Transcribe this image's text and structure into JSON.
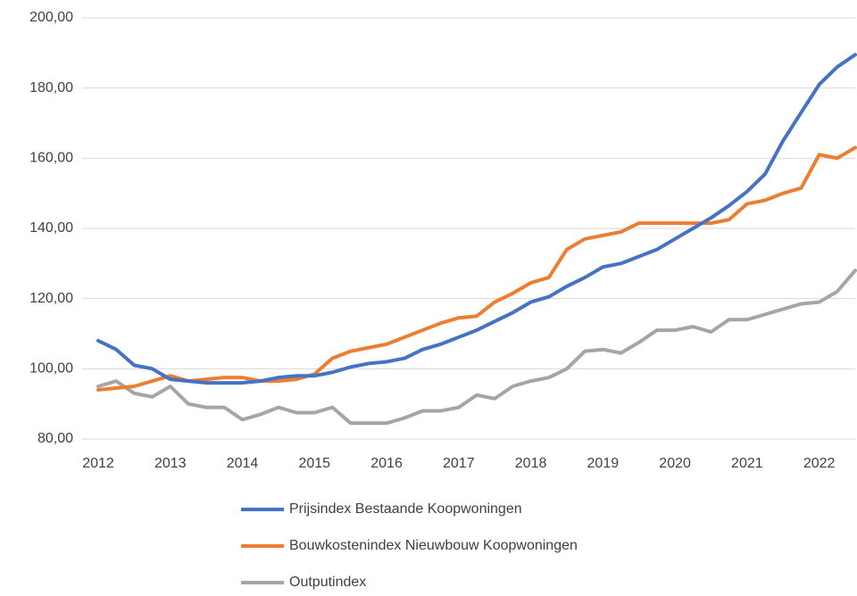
{
  "chart_data": {
    "type": "line",
    "x": [
      2012,
      2012.25,
      2012.5,
      2012.75,
      2013,
      2013.25,
      2013.5,
      2013.75,
      2014,
      2014.25,
      2014.5,
      2014.75,
      2015,
      2015.25,
      2015.5,
      2015.75,
      2016,
      2016.25,
      2016.5,
      2016.75,
      2017,
      2017.25,
      2017.5,
      2017.75,
      2018,
      2018.25,
      2018.5,
      2018.75,
      2019,
      2019.25,
      2019.5,
      2019.75,
      2020,
      2020.25,
      2020.5,
      2020.75,
      2021,
      2021.25,
      2021.5,
      2021.75,
      2022,
      2022.25,
      2022.5
    ],
    "series": [
      {
        "name": "Prijsindex Bestaande Koopwoningen",
        "color": "#4472c4",
        "values": [
          108,
          105.5,
          101,
          100,
          97,
          96.5,
          96,
          96,
          96,
          96.5,
          97.5,
          98,
          98,
          99,
          100.5,
          101.5,
          102,
          103,
          105.5,
          107,
          109,
          111,
          113.5,
          116,
          119,
          120.5,
          123.5,
          126,
          129,
          130,
          132,
          134,
          137,
          140,
          143,
          146.5,
          150.5,
          155.5,
          165,
          173,
          181,
          186,
          189.5
        ]
      },
      {
        "name": "Bouwkostenindex Nieuwbouw Koopwoningen",
        "color": "#ed7d31",
        "values": [
          94,
          94.5,
          95,
          96.5,
          98,
          96.5,
          97,
          97.5,
          97.5,
          96.5,
          96.5,
          97,
          98.5,
          103,
          105,
          106,
          107,
          109,
          111,
          113,
          114.5,
          115,
          119,
          121.5,
          124.5,
          126,
          134,
          137,
          138,
          139,
          141.5,
          141.5,
          141.5,
          141.5,
          141.5,
          142.5,
          147,
          148,
          150,
          151.5,
          161,
          160,
          163
        ]
      },
      {
        "name": "Outputindex",
        "color": "#a5a5a5",
        "values": [
          95,
          96.5,
          93,
          92,
          95,
          90,
          89,
          89,
          85.5,
          87,
          89,
          87.5,
          87.5,
          89,
          84.5,
          84.5,
          84.5,
          86,
          88,
          88,
          89,
          92.5,
          91.5,
          95,
          96.5,
          97.5,
          100,
          105,
          105.5,
          104.5,
          107.5,
          111,
          111,
          112,
          110.5,
          114,
          114,
          115.5,
          117,
          118.5,
          119,
          122,
          128
        ]
      }
    ],
    "xlim": [
      2012,
      2022.5
    ],
    "xticks": [
      2012,
      2013,
      2014,
      2015,
      2016,
      2017,
      2018,
      2019,
      2020,
      2021,
      2022
    ],
    "ylim": [
      80,
      200
    ],
    "yticks": [
      {
        "value": 80,
        "label": "80,00"
      },
      {
        "value": 100,
        "label": "100,00"
      },
      {
        "value": 120,
        "label": "120,00"
      },
      {
        "value": 140,
        "label": "140,00"
      },
      {
        "value": 160,
        "label": "160,00"
      },
      {
        "value": 180,
        "label": "180,00"
      },
      {
        "value": 200,
        "label": "200,00"
      }
    ],
    "grid": true,
    "legend": "bottom"
  }
}
